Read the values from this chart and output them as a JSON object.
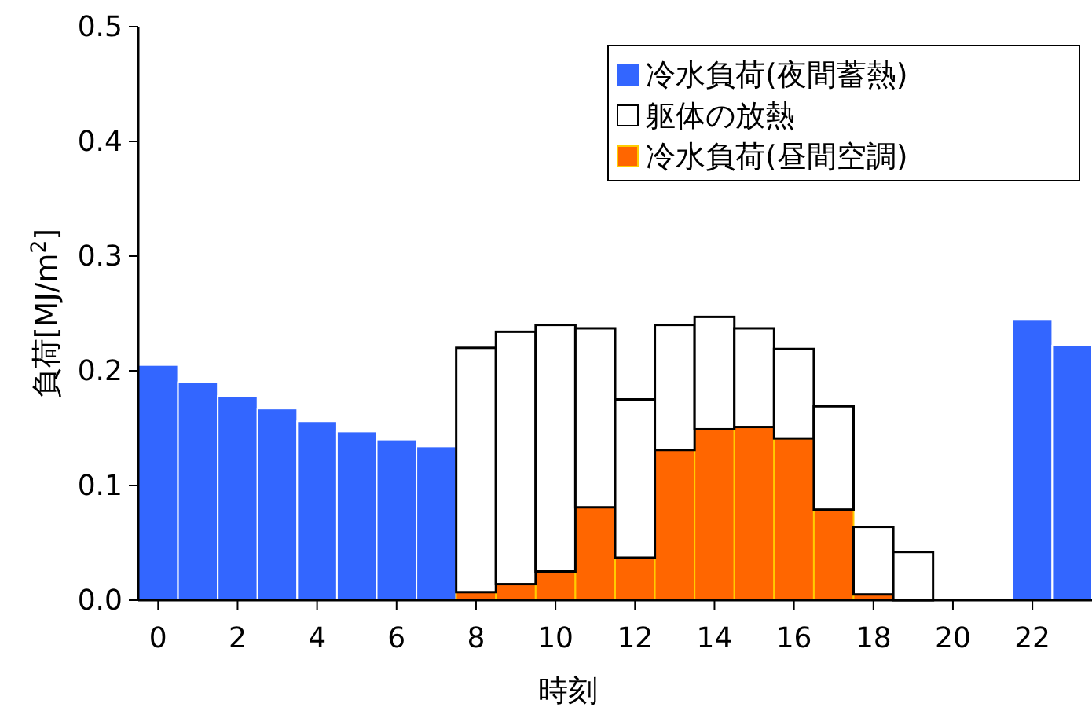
{
  "chart_data": {
    "type": "bar",
    "stacked": true,
    "xlabel": "時刻",
    "ylabel": "負荷[MJ/m$^{2}$]",
    "x": [
      0,
      1,
      2,
      3,
      4,
      5,
      6,
      7,
      8,
      9,
      10,
      11,
      12,
      13,
      14,
      15,
      16,
      17,
      18,
      19,
      20,
      21,
      22,
      23
    ],
    "xlim": [
      -0.5,
      23.5
    ],
    "xticks": [
      0,
      2,
      4,
      6,
      8,
      10,
      12,
      14,
      16,
      18,
      20,
      22
    ],
    "ylim": [
      0,
      0.5
    ],
    "yticks": [
      {
        "value": 0,
        "label": "0.0"
      },
      {
        "value": 0.1,
        "label": "0.1"
      },
      {
        "value": 0.2,
        "label": "0.2"
      },
      {
        "value": 0.3,
        "label": "0.3"
      },
      {
        "value": 0.4,
        "label": "0.4"
      },
      {
        "value": 0.5,
        "label": "0.5"
      }
    ],
    "legend": "top right",
    "grid": false,
    "series": [
      {
        "name": "冷水負荷(夜間蓄熱)",
        "color": "#3366ff",
        "values": [
          0.205,
          0.19,
          0.178,
          0.167,
          0.156,
          0.147,
          0.14,
          0.134,
          null,
          null,
          null,
          null,
          null,
          null,
          null,
          null,
          null,
          null,
          null,
          null,
          null,
          null,
          0.245,
          0.222
        ]
      },
      {
        "name": "冷水負荷(昼間空調)",
        "color": "#ff6600",
        "values": [
          null,
          null,
          null,
          null,
          null,
          null,
          null,
          null,
          0.007,
          0.014,
          0.025,
          0.081,
          0.037,
          0.131,
          0.149,
          0.151,
          0.141,
          0.079,
          0.005,
          null,
          null,
          null,
          null,
          null
        ]
      },
      {
        "name": "躯体の放熱",
        "color": "#ffffff",
        "values": [
          null,
          null,
          null,
          null,
          null,
          null,
          null,
          null,
          0.213,
          0.22,
          0.215,
          0.156,
          0.138,
          0.109,
          0.098,
          0.086,
          0.078,
          0.09,
          0.059,
          0.042,
          null,
          null,
          null,
          null
        ]
      }
    ]
  }
}
